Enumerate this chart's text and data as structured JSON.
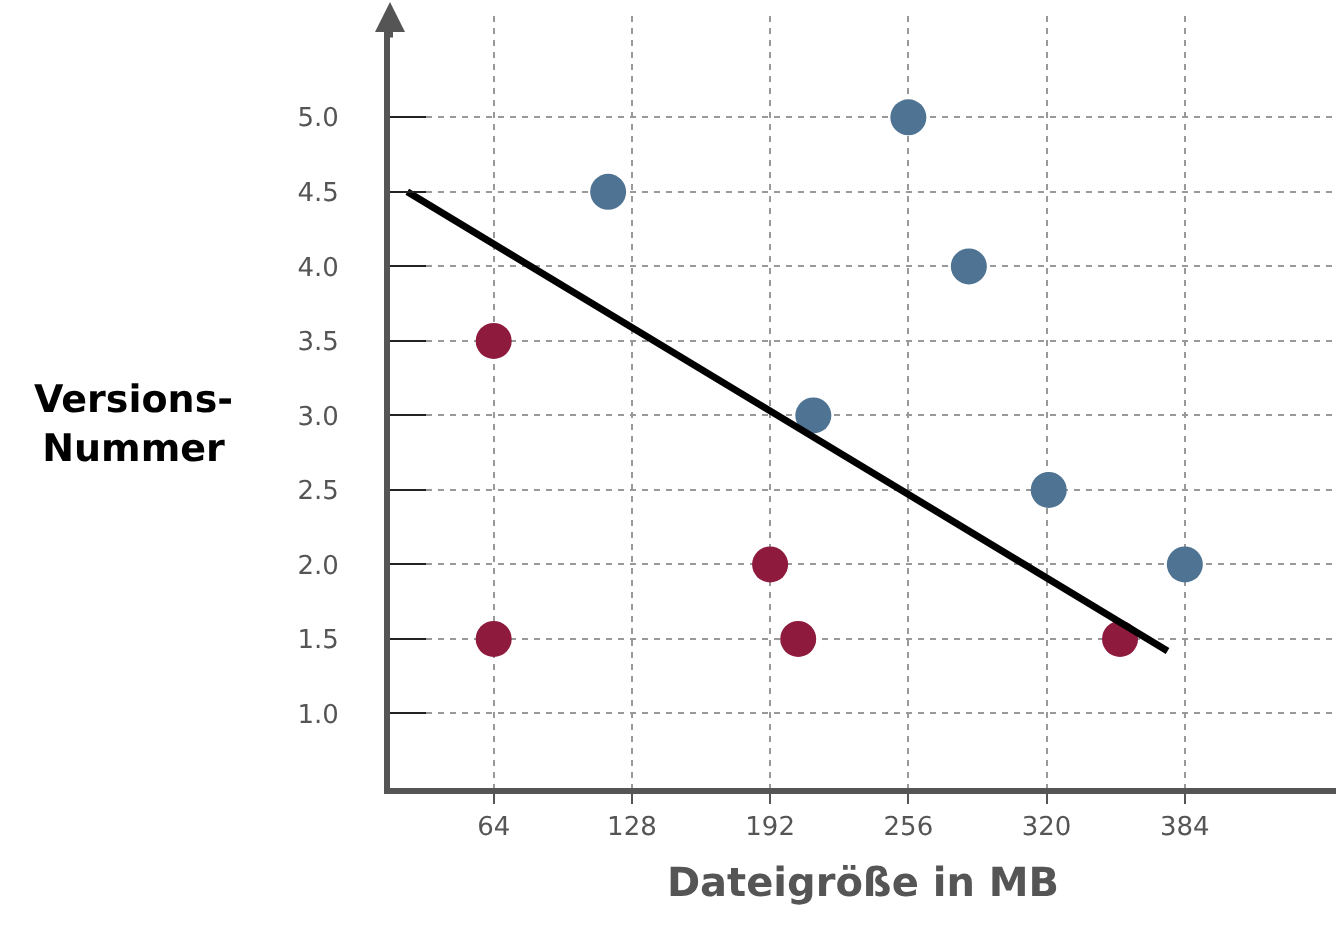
{
  "chart_data": {
    "type": "scatter",
    "xlabel": "Dateigröße in MB",
    "ylabel": "Versions-\nNummer",
    "xlim": [
      16,
      454
    ],
    "ylim": [
      0.5,
      5.68
    ],
    "xticks": [
      64,
      128,
      192,
      256,
      320,
      384
    ],
    "yticks": [
      {
        "value": 1,
        "label": "1.0"
      },
      {
        "value": 1.5,
        "label": "1.5"
      },
      {
        "value": 2,
        "label": "2.0"
      },
      {
        "value": 2.5,
        "label": "2.5"
      },
      {
        "value": 3,
        "label": "3.0"
      },
      {
        "value": 3.5,
        "label": "3.5"
      },
      {
        "value": 4,
        "label": "4.0"
      },
      {
        "value": 4.5,
        "label": "4.5"
      },
      {
        "value": 5,
        "label": "5.0"
      }
    ],
    "grid": true,
    "marker": "circle",
    "series": [
      {
        "color": "#4f7392",
        "x": [
          117,
          256,
          284,
          212,
          321,
          384
        ],
        "values": [
          4.5,
          5.0,
          4.0,
          3.0,
          2.5,
          2.0
        ]
      },
      {
        "color": "#8e1a3e",
        "x": [
          64,
          64,
          192,
          205,
          354
        ],
        "values": [
          3.5,
          1.5,
          2.0,
          1.5,
          1.5
        ]
      },
      {
        "type": "line",
        "color": "#000000",
        "marker": "none",
        "x": [
          24,
          376
        ],
        "values": [
          4.5,
          1.42
        ]
      }
    ]
  }
}
